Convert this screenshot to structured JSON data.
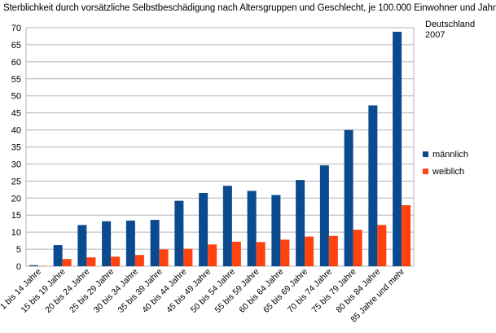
{
  "chart_data": {
    "type": "bar",
    "title": "Sterblichkeit durch vorsätzliche Selbstbeschädigung nach Altersgruppen und Geschlecht, je 100.000 Einwohner und Jahr",
    "subtitle_lines": [
      "Deutschland",
      "2007"
    ],
    "xlabel": "",
    "ylabel": "",
    "ylim": [
      0,
      70
    ],
    "ytick_step": 5,
    "grid": true,
    "legend_position": "right",
    "categories": [
      "1 bis 14 Jahre",
      "15 bis 19 Jahre",
      "20 bis 24 Jahre",
      "25 bis 29 Jahre",
      "30 bis 34 Jahre",
      "35 bis 39 Jahre",
      "40 bis 44 Jahre",
      "45 bis 49 Jahre",
      "50 bis 54 Jahre",
      "55 bis 59 Jahre",
      "60 bis 64 Jahre",
      "65 bis 69 Jahre",
      "70 bis 74 Jahre",
      "75 bis 79 Jahre",
      "80 bis 84 Jahre",
      "85 Jahre und mehr"
    ],
    "series": [
      {
        "name": "männlich",
        "color": "#0b4a8f",
        "values": [
          0.3,
          6.2,
          12.1,
          13.2,
          13.4,
          13.6,
          19.2,
          21.5,
          23.6,
          22.1,
          20.9,
          25.3,
          29.6,
          40.0,
          47.2,
          68.8
        ]
      },
      {
        "name": "weiblich",
        "color": "#ff420e",
        "values": [
          0.1,
          2.1,
          2.6,
          2.8,
          3.3,
          4.9,
          5.1,
          6.4,
          7.2,
          7.1,
          7.8,
          8.7,
          8.9,
          10.7,
          12.1,
          17.9
        ]
      }
    ]
  }
}
